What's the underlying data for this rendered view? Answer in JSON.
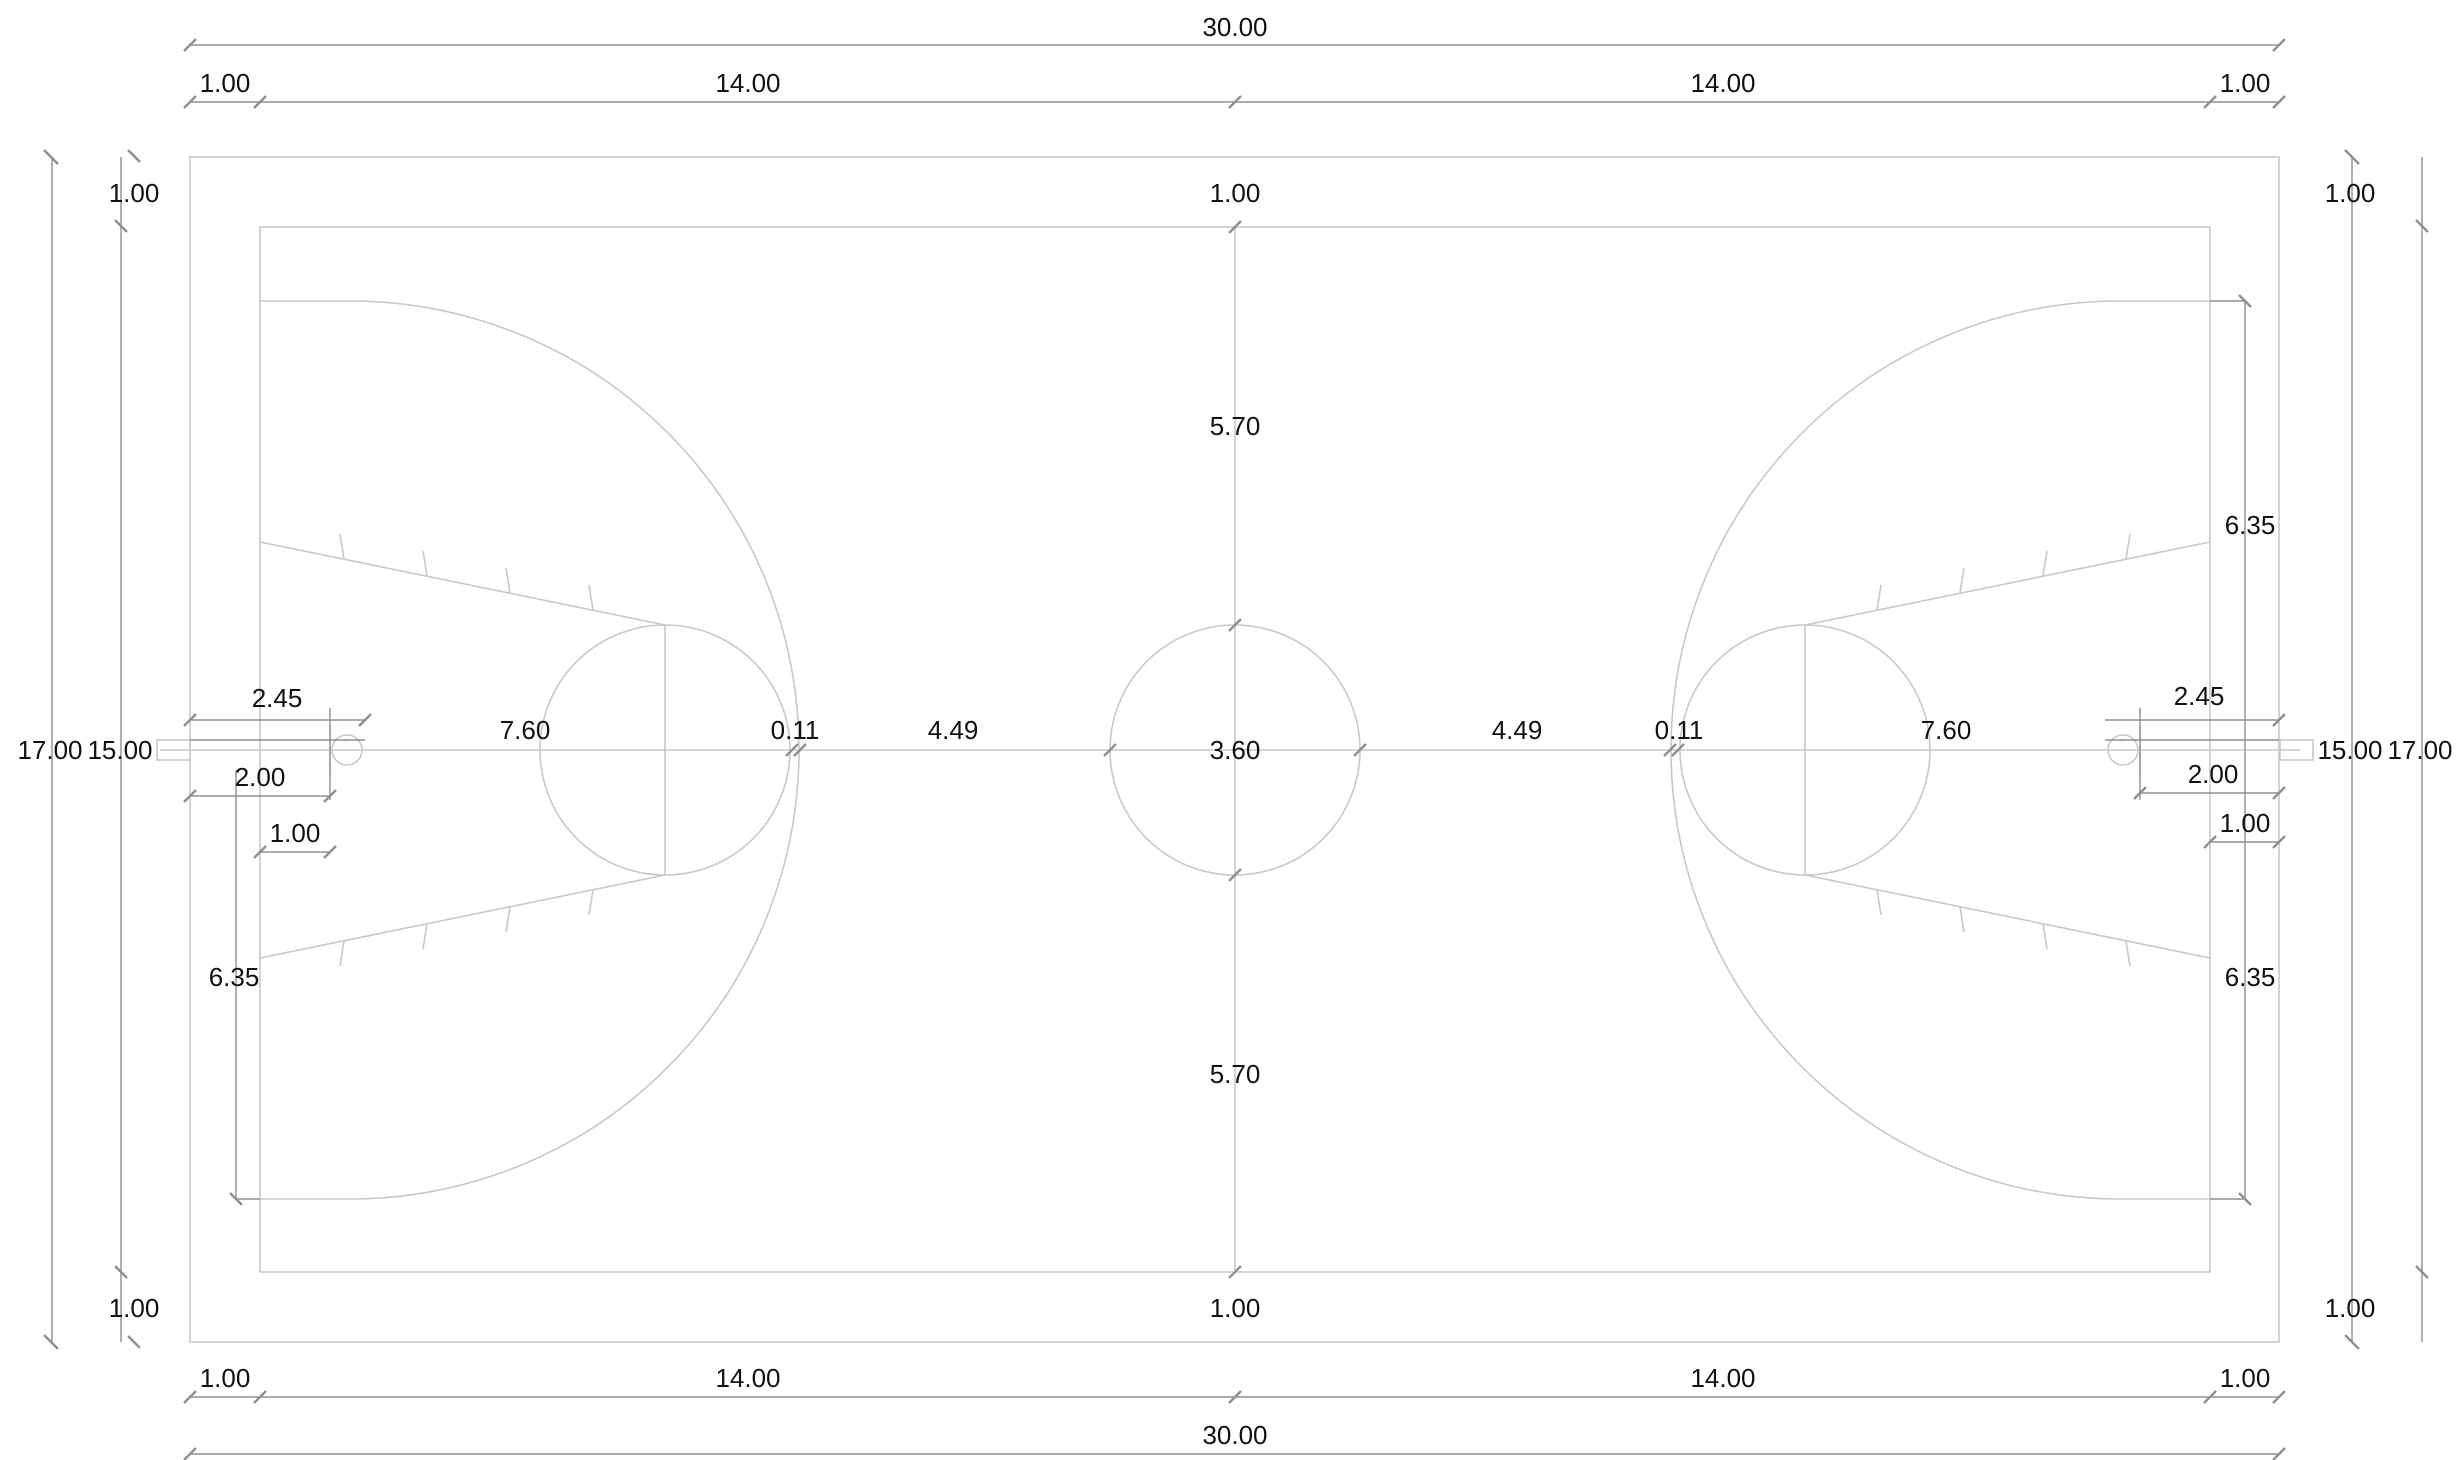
{
  "drawing": {
    "total_length": "30.00",
    "margin_end": "1.00",
    "half_length": "14.00",
    "total_width": "17.00",
    "court_width": "15.00",
    "margin_side": "1.00",
    "centerline_half": "5.70",
    "center_circle": "3.60",
    "center_gap": "4.49",
    "arc_offset": "0.11",
    "three_point_radius": "7.60",
    "lane_dim": "2.45",
    "backboard_dim": "2.00",
    "basket_offset": "1.00",
    "corner_dim": "6.35"
  },
  "colors": {
    "court_line": "#c8c8c8",
    "dimension_line": "#8f8f8f",
    "text": "#111111"
  }
}
